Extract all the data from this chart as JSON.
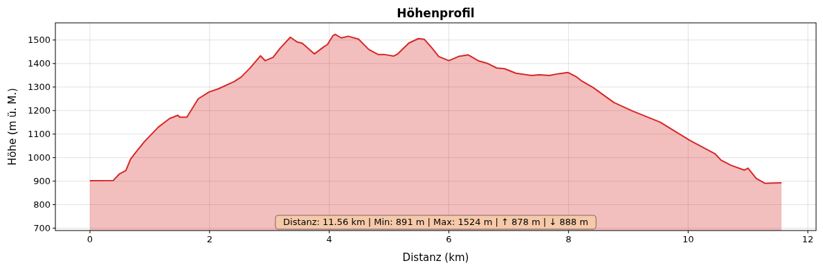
{
  "chart_data": {
    "type": "area",
    "title": "Höhenprofil",
    "xlabel": "Distanz (km)",
    "ylabel": "Höhe (m ü. M.)",
    "x": [
      0,
      0.39,
      0.49,
      0.6,
      0.68,
      0.77,
      0.91,
      1.14,
      1.33,
      1.47,
      1.5,
      1.62,
      1.81,
      1.99,
      2.14,
      2.41,
      2.53,
      2.68,
      2.85,
      2.93,
      3.06,
      3.18,
      3.35,
      3.46,
      3.55,
      3.75,
      3.91,
      3.97,
      4.06,
      4.1,
      4.2,
      4.32,
      4.49,
      4.66,
      4.82,
      4.93,
      5.08,
      5.14,
      5.33,
      5.49,
      5.59,
      5.72,
      5.83,
      6.0,
      6.16,
      6.32,
      6.49,
      6.64,
      6.8,
      6.93,
      7.12,
      7.39,
      7.51,
      7.68,
      7.84,
      7.99,
      8.14,
      8.22,
      8.41,
      8.76,
      9.07,
      9.53,
      10.03,
      10.45,
      10.55,
      10.72,
      10.94,
      11.0,
      11.14,
      11.28,
      11.56
    ],
    "series": [
      {
        "color": "#d62728",
        "values": [
          902,
          903,
          930,
          945,
          994,
          1024,
          1068,
          1129,
          1166,
          1180,
          1172,
          1172,
          1250,
          1279,
          1292,
          1323,
          1343,
          1382,
          1433,
          1412,
          1426,
          1465,
          1512,
          1492,
          1486,
          1441,
          1471,
          1481,
          1518,
          1524,
          1509,
          1516,
          1504,
          1460,
          1438,
          1438,
          1432,
          1440,
          1487,
          1506,
          1503,
          1465,
          1430,
          1412,
          1430,
          1437,
          1412,
          1401,
          1381,
          1378,
          1359,
          1349,
          1352,
          1349,
          1357,
          1362,
          1342,
          1326,
          1298,
          1234,
          1198,
          1151,
          1073,
          1016,
          989,
          967,
          947,
          955,
          911,
          891,
          893
        ]
      }
    ],
    "xlim": [
      -0.578,
      12.138
    ],
    "ylim": [
      690,
      1573
    ],
    "xticks": [
      0,
      2,
      4,
      6,
      8,
      10,
      12
    ],
    "yticks": [
      700,
      800,
      900,
      1000,
      1100,
      1200,
      1300,
      1400,
      1500
    ],
    "grid": true,
    "annotations": [
      "Distanz: 11.56 km | Min: 891 m | Max: 1524 m | ↑ 878 m | ↓ 888 m"
    ]
  }
}
